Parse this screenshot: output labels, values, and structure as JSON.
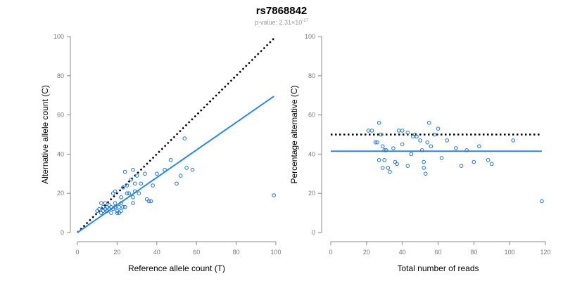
{
  "figure": {
    "title": "rs7868842",
    "subtitle_prefix": "p-value: 2.31×10",
    "subtitle_exponent": "-17"
  },
  "colors": {
    "points": "#1f77d0",
    "fit_line": "#2a88e0",
    "reference_line": "#000000",
    "axis": "#888888"
  },
  "chart_data": [
    {
      "type": "scatter",
      "xlabel": "Reference allele count (T)",
      "ylabel": "Alternative allele count (C)",
      "xlim": [
        0,
        100
      ],
      "ylim": [
        0,
        100
      ],
      "xticks": [
        0,
        20,
        40,
        60,
        80,
        100
      ],
      "yticks": [
        0,
        20,
        40,
        60,
        80,
        100
      ],
      "grid": false,
      "points": [
        [
          10,
          11
        ],
        [
          11,
          12
        ],
        [
          12,
          10
        ],
        [
          12,
          15
        ],
        [
          13,
          11
        ],
        [
          13,
          13
        ],
        [
          14,
          12
        ],
        [
          14,
          15
        ],
        [
          15,
          13
        ],
        [
          15,
          11
        ],
        [
          16,
          12
        ],
        [
          16,
          14
        ],
        [
          17,
          13
        ],
        [
          17,
          10
        ],
        [
          18,
          12
        ],
        [
          18,
          20
        ],
        [
          19,
          13
        ],
        [
          19,
          15
        ],
        [
          19,
          21
        ],
        [
          20,
          10
        ],
        [
          20,
          11
        ],
        [
          21,
          13
        ],
        [
          21,
          10
        ],
        [
          22,
          15
        ],
        [
          22,
          11
        ],
        [
          22,
          18
        ],
        [
          23,
          23
        ],
        [
          23,
          13
        ],
        [
          24,
          31
        ],
        [
          24,
          13
        ],
        [
          25,
          20
        ],
        [
          25,
          24
        ],
        [
          26,
          20
        ],
        [
          27,
          27
        ],
        [
          28,
          32
        ],
        [
          28,
          18
        ],
        [
          28,
          15
        ],
        [
          29,
          21
        ],
        [
          29,
          25
        ],
        [
          30,
          29
        ],
        [
          31,
          20
        ],
        [
          32,
          25
        ],
        [
          34,
          30
        ],
        [
          35,
          17
        ],
        [
          36,
          16
        ],
        [
          37,
          16
        ],
        [
          38,
          24
        ],
        [
          40,
          30
        ],
        [
          44,
          32
        ],
        [
          47,
          37
        ],
        [
          50,
          25
        ],
        [
          52,
          29
        ],
        [
          54,
          48
        ],
        [
          55,
          33
        ],
        [
          58,
          32
        ],
        [
          99,
          19
        ]
      ],
      "fit_line": [
        [
          0,
          0
        ],
        [
          99,
          69.5
        ]
      ],
      "reference_line": [
        [
          0,
          0
        ],
        [
          99,
          99
        ]
      ]
    },
    {
      "type": "scatter",
      "xlabel": "Total number of reads",
      "ylabel": "Percentage alternative (C)",
      "xlim": [
        0,
        120
      ],
      "ylim": [
        0,
        100
      ],
      "xticks": [
        0,
        20,
        40,
        60,
        80,
        100,
        120
      ],
      "yticks": [
        0,
        20,
        40,
        60,
        80,
        100
      ],
      "grid": false,
      "points": [
        [
          21,
          52
        ],
        [
          23,
          52
        ],
        [
          25,
          46
        ],
        [
          26,
          46
        ],
        [
          27,
          56
        ],
        [
          27,
          37
        ],
        [
          28,
          50
        ],
        [
          29,
          44
        ],
        [
          29,
          33
        ],
        [
          30,
          37
        ],
        [
          30,
          42
        ],
        [
          31,
          42
        ],
        [
          32,
          33
        ],
        [
          33,
          31
        ],
        [
          35,
          43
        ],
        [
          36,
          36
        ],
        [
          37,
          35
        ],
        [
          38,
          52
        ],
        [
          40,
          45
        ],
        [
          40,
          52
        ],
        [
          43,
          51
        ],
        [
          43,
          34
        ],
        [
          45,
          40
        ],
        [
          46,
          49
        ],
        [
          47,
          50
        ],
        [
          48,
          49
        ],
        [
          50,
          47
        ],
        [
          51,
          42
        ],
        [
          52,
          36
        ],
        [
          52,
          33
        ],
        [
          53,
          30
        ],
        [
          54,
          46
        ],
        [
          55,
          56
        ],
        [
          56,
          44
        ],
        [
          58,
          50
        ],
        [
          60,
          53
        ],
        [
          62,
          38
        ],
        [
          65,
          47
        ],
        [
          70,
          43
        ],
        [
          73,
          34
        ],
        [
          76,
          42
        ],
        [
          80,
          36
        ],
        [
          83,
          44
        ],
        [
          88,
          37
        ],
        [
          90,
          35
        ],
        [
          102,
          47
        ],
        [
          118,
          16
        ]
      ],
      "fit_line": [
        [
          0,
          41.5
        ],
        [
          118,
          41.5
        ]
      ],
      "reference_line": [
        [
          0,
          50
        ],
        [
          118,
          50
        ]
      ]
    }
  ]
}
